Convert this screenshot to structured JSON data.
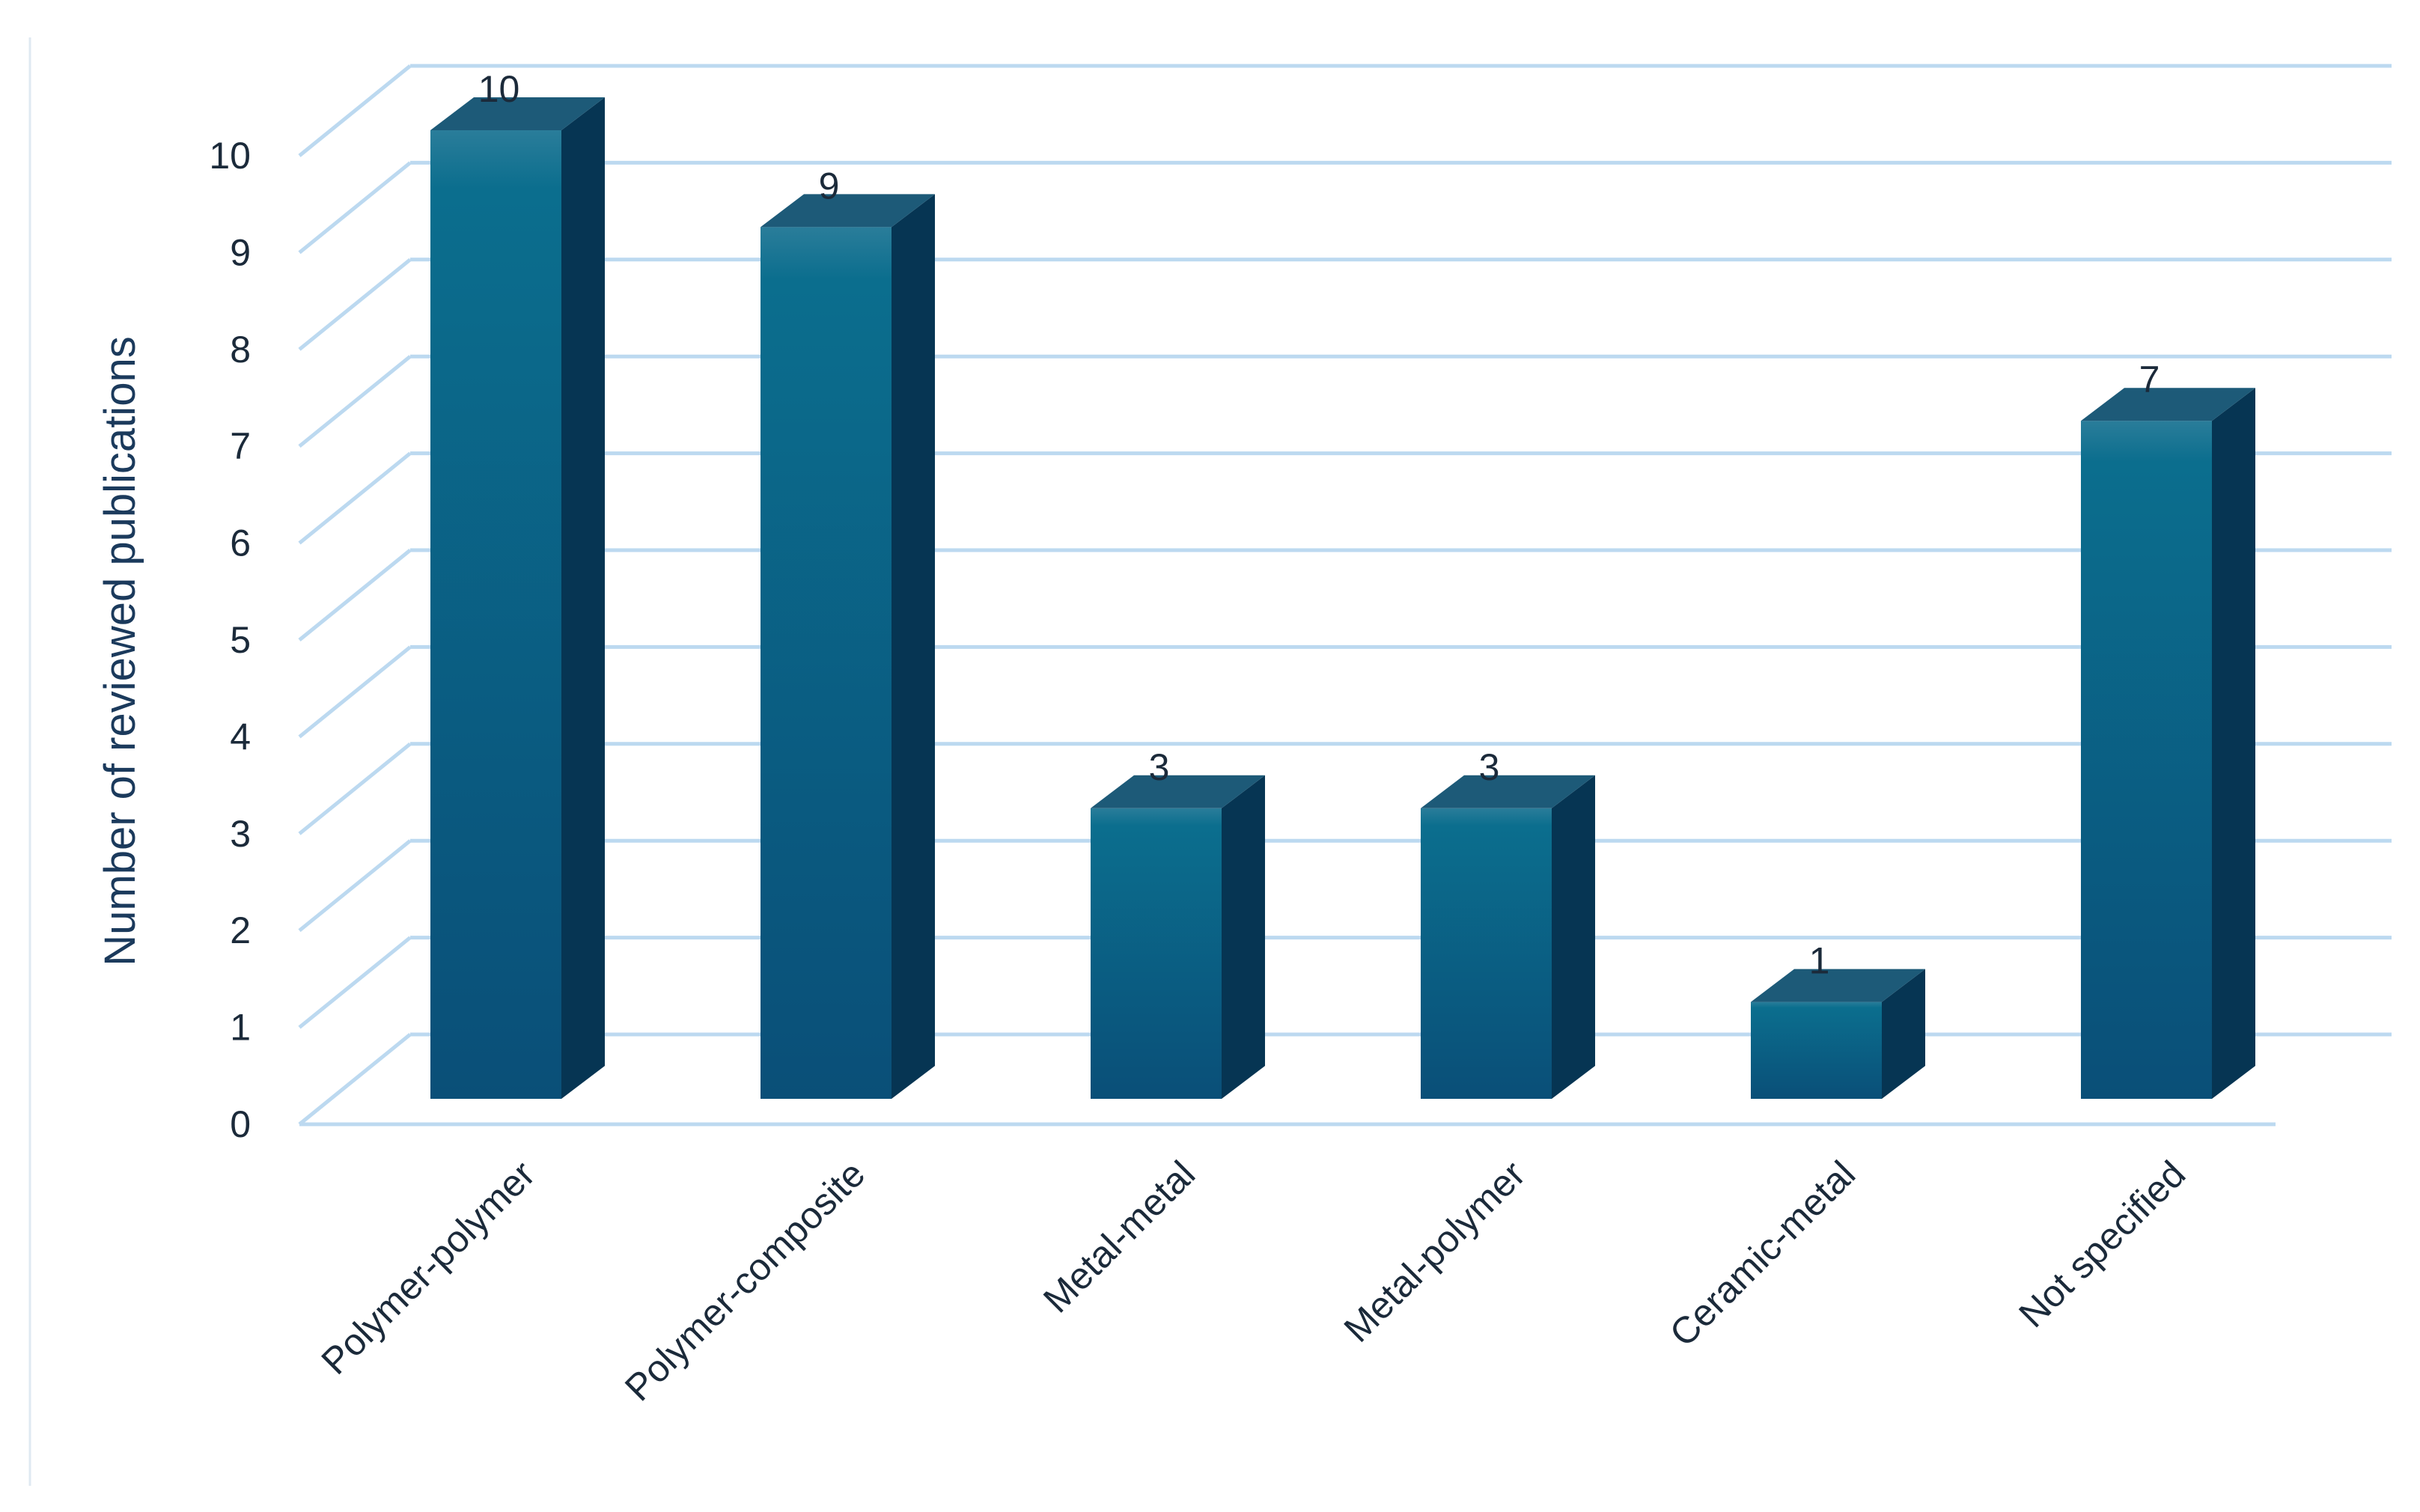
{
  "chart_data": {
    "type": "bar",
    "three_d": true,
    "categories": [
      "Polymer-polymer",
      "Polymer-composite",
      "Metal-metal",
      "Metal-polymer",
      "Ceramic-metal",
      "Not specified"
    ],
    "values": [
      10,
      9,
      3,
      3,
      1,
      7
    ],
    "data_labels": [
      "10",
      "9",
      "3",
      "3",
      "1",
      "7"
    ],
    "title": "",
    "xlabel": "",
    "ylabel": "Number of reviewed publications",
    "ylim": [
      0,
      10
    ],
    "yticks": [
      0,
      1,
      2,
      3,
      4,
      5,
      6,
      7,
      8,
      9,
      10
    ],
    "grid": true,
    "legend": "none",
    "colors": {
      "bar_front_top": "#0b6e8e",
      "bar_front_bottom": "#0a4f78",
      "bar_side": "#063553",
      "bar_top": "#1d5a78",
      "grid": "#bcd9f0",
      "text": "#1b2a3a",
      "axis_title": "#1b3a5c"
    }
  }
}
